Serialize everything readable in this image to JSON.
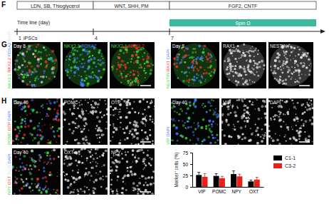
{
  "panels": {
    "F": {
      "label": "F",
      "segments": [
        "LDN, SB, Thioglycerol",
        "WNT, SHH, PM",
        "FGF2, CNTF"
      ],
      "spin": "Spin Ω",
      "timeline_title": "Time line (day)",
      "days": [
        {
          "value": 1,
          "label": "1"
        },
        {
          "value": 4,
          "label": "4"
        },
        {
          "value": 7,
          "label": "7"
        }
      ],
      "start_note": "iPSCs"
    },
    "G": {
      "label": "G",
      "groups": [
        {
          "day": "Day 8",
          "merge": [
            {
              "text": "NKX2.1",
              "color": "#3ddc3d"
            },
            {
              "text": "NKX2.2",
              "color": "#ff3030"
            },
            {
              "text": "FOXA2",
              "color": "#4a7dff"
            },
            {
              "text": "DAPI",
              "color": "#e0e0e0"
            }
          ],
          "singles": [
            [
              {
                "text": "NKX2.1",
                "color": "#3ddc3d"
              },
              {
                "text": "FOXA2",
                "color": "#4a7dff"
              }
            ],
            [
              {
                "text": "NKX2.1",
                "color": "#3ddc3d"
              },
              {
                "text": "NKX2.2",
                "color": "#ff3030"
              }
            ]
          ]
        },
        {
          "day": "Day 8",
          "merge": [
            {
              "text": "NESTIN",
              "color": "#3ddc3d"
            },
            {
              "text": "RAX1",
              "color": "#ff3030"
            },
            {
              "text": "DAPI",
              "color": "#4a7dff"
            }
          ],
          "singles": [
            [
              {
                "text": "RAX1",
                "color": "#e8e8e8"
              }
            ],
            [
              {
                "text": "NESTIN",
                "color": "#e8e8e8"
              }
            ]
          ]
        }
      ]
    },
    "H": {
      "label": "H",
      "groups": [
        {
          "day": "Day 40",
          "merge": [
            {
              "text": "POMC",
              "color": "#3ddc3d"
            },
            {
              "text": "OTP",
              "color": "#ff3030"
            },
            {
              "text": "DAPI",
              "color": "#4a7dff"
            }
          ],
          "singles": [
            [
              {
                "text": "POMC",
                "color": "#e8e8e8"
              }
            ],
            [
              {
                "text": "OTP",
                "color": "#e8e8e8"
              }
            ]
          ]
        },
        {
          "day": "Day 40",
          "merge": [
            {
              "text": "VIP",
              "color": "#3ddc3d"
            },
            {
              "text": "DAPI",
              "color": "#4a7dff"
            }
          ],
          "singles": [
            [
              {
                "text": "VIP",
                "color": "#e8e8e8"
              }
            ],
            [
              {
                "text": "DAPI",
                "color": "#e8e8e8"
              }
            ]
          ]
        },
        {
          "day": "Day 40",
          "merge": [
            {
              "text": "NPY",
              "color": "#3ddc3d"
            },
            {
              "text": "OXT",
              "color": "#ff3030"
            },
            {
              "text": "TUJ1",
              "color": "#d8d8d8"
            },
            {
              "text": "DAPI",
              "color": "#4a7dff"
            }
          ],
          "singles": [
            [
              {
                "text": "OXT",
                "color": "#e8e8e8"
              }
            ],
            [
              {
                "text": "NPY",
                "color": "#e8e8e8"
              }
            ]
          ]
        }
      ]
    }
  },
  "chart_data": {
    "type": "bar",
    "y_label": "Marker⁺ cells (%)",
    "categories": [
      "VIP",
      "POMC",
      "NPY",
      "OXT"
    ],
    "series": [
      {
        "name": "C1-1",
        "color": "#000000",
        "values": [
          26,
          24,
          28,
          12
        ],
        "errors": [
          6,
          5,
          7,
          3
        ]
      },
      {
        "name": "C3-2",
        "color": "#e8211c",
        "values": [
          22,
          19,
          23,
          16
        ],
        "errors": [
          7,
          4,
          5,
          5
        ]
      }
    ],
    "ylim": [
      0,
      75
    ],
    "yticks": [
      0,
      25,
      50,
      75
    ],
    "legend": "right"
  }
}
